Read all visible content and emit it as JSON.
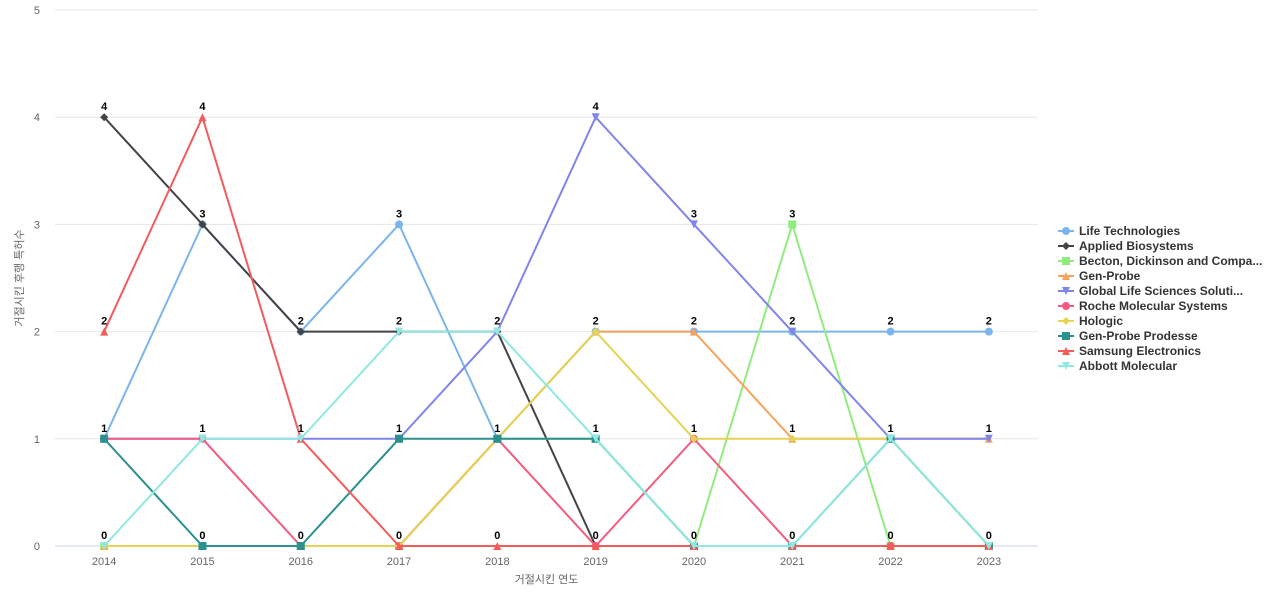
{
  "chart_data": {
    "type": "line",
    "x_label": "거절시킨 연도",
    "y_label": "거절시킨 후행 특허수",
    "categories": [
      "2014",
      "2015",
      "2016",
      "2017",
      "2018",
      "2019",
      "2020",
      "2021",
      "2022",
      "2023"
    ],
    "ylim": [
      0,
      5
    ],
    "yticks": [
      0,
      1,
      2,
      3,
      4,
      5
    ],
    "grid": true,
    "legend": "right",
    "series": [
      {
        "name": "Life Technologies",
        "color": "#7cb5ec",
        "marker": "circle",
        "values": [
          1,
          3,
          2,
          3,
          1,
          2,
          2,
          2,
          2,
          2
        ]
      },
      {
        "name": "Applied Biosystems",
        "color": "#434348",
        "marker": "diamond",
        "values": [
          4,
          3,
          2,
          2,
          2,
          0,
          0,
          0,
          0,
          0
        ]
      },
      {
        "name": "Becton, Dickinson and Compa...",
        "color": "#90ed7d",
        "marker": "square",
        "values": [
          0,
          0,
          0,
          0,
          1,
          1,
          0,
          3,
          0,
          0
        ]
      },
      {
        "name": "Gen-Probe",
        "color": "#f7a35c",
        "marker": "triangle",
        "values": [
          0,
          0,
          0,
          0,
          1,
          2,
          2,
          1,
          1,
          1
        ]
      },
      {
        "name": "Global Life Sciences Soluti...",
        "color": "#8085e9",
        "marker": "triangle-down",
        "values": [
          1,
          1,
          1,
          1,
          2,
          4,
          3,
          2,
          1,
          1
        ]
      },
      {
        "name": "Roche Molecular Systems",
        "color": "#f15c80",
        "marker": "circle",
        "values": [
          1,
          1,
          0,
          0,
          1,
          0,
          1,
          0,
          0,
          0
        ]
      },
      {
        "name": "Hologic",
        "color": "#e4d354",
        "marker": "diamond",
        "values": [
          0,
          0,
          0,
          0,
          1,
          2,
          1,
          1,
          1,
          0
        ]
      },
      {
        "name": "Gen-Probe Prodesse",
        "color": "#2b908f",
        "marker": "square",
        "values": [
          1,
          0,
          0,
          1,
          1,
          1,
          0,
          0,
          1,
          0
        ]
      },
      {
        "name": "Samsung Electronics",
        "color": "#f45b5b",
        "marker": "triangle",
        "values": [
          2,
          4,
          1,
          0,
          0,
          0,
          0,
          0,
          0,
          0
        ]
      },
      {
        "name": "Abbott Molecular",
        "color": "#91e8e1",
        "marker": "triangle-down",
        "values": [
          0,
          1,
          1,
          2,
          2,
          1,
          0,
          0,
          1,
          0
        ]
      }
    ]
  }
}
